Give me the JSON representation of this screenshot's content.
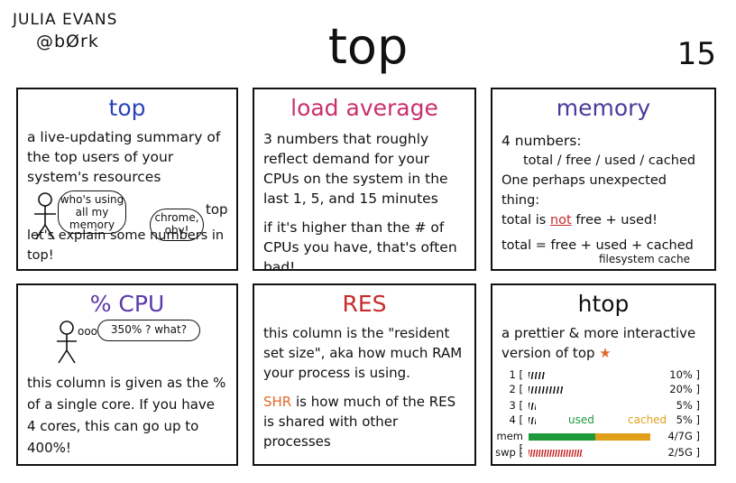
{
  "header": {
    "author_name": "JULIA EVANS",
    "author_handle": "@bØrk",
    "title": "top",
    "page_number": "15"
  },
  "panels": {
    "top": {
      "title": "top",
      "body": "a live-updating summary of the top users of your system's resources",
      "bubble_1": "who's using all my memory",
      "bubble_2": "chrome, obv!",
      "bubble_tag": "top",
      "footer": "let's explain some numbers in top!"
    },
    "load": {
      "title": "load average",
      "body_1": "3 numbers that roughly reflect demand for your CPUs on the system in the last 1, 5, and 15 minutes",
      "body_2": "if it's higher than the # of CPUs you have, that's often bad!"
    },
    "memory": {
      "title": "memory",
      "line_1": "4 numbers:",
      "line_2": "total / free / used / cached",
      "line_3": "One perhaps unexpected thing:",
      "line_4_a": "total is",
      "line_4_not": "not",
      "line_4_b": "free + used!",
      "line_5": "total = free + used + cached",
      "note": "filesystem cache"
    },
    "cpu": {
      "title": "% CPU",
      "bubble": "350% ? what?",
      "think_dots": "ooo",
      "body": "this column is given as the % of a single core. If you have 4 cores, this can go up to 400%!"
    },
    "res": {
      "title": "RES",
      "body_1": "this column is the \"resident set size\", aka how much RAM your process is using.",
      "shr_word": "SHR",
      "body_2": "is how much of the RES is shared with other processes"
    },
    "htop": {
      "title": "htop",
      "body": "a prettier & more interactive version of top",
      "star": "★",
      "used_label": "used",
      "cached_label": "cached",
      "rows": [
        {
          "label": "1",
          "value": "10%",
          "fill": 0.12
        },
        {
          "label": "2",
          "value": "20%",
          "fill": 0.25
        },
        {
          "label": "3",
          "value": "5%",
          "fill": 0.05
        },
        {
          "label": "4",
          "value": "5%",
          "fill": 0.05
        },
        {
          "label": "mem",
          "value": "4/7G",
          "fill": 0.9
        },
        {
          "label": "swp",
          "value": "2/5G",
          "fill": 0.4
        }
      ]
    }
  },
  "colors": {
    "blue": "#2a44b8",
    "pink": "#c8306a",
    "purple": "#4a3a9c",
    "red": "#c72a2a",
    "orange": "#e26a2a",
    "green": "#1f9a3a"
  }
}
